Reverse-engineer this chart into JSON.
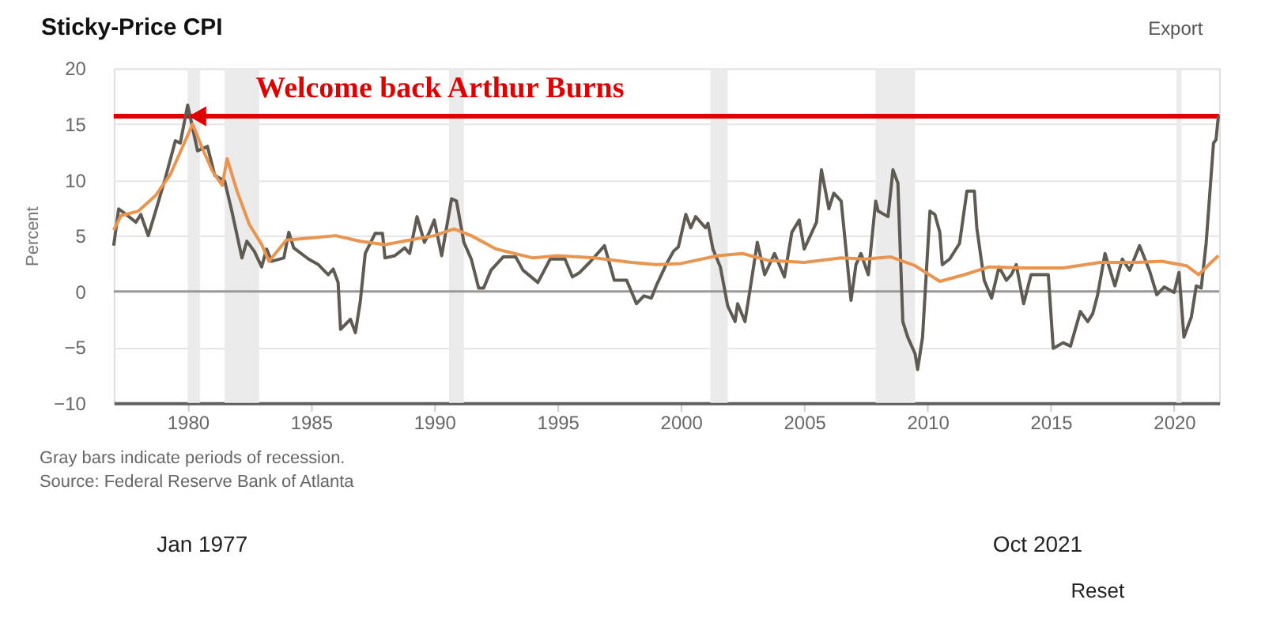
{
  "chart_data": {
    "type": "line",
    "title": "Sticky-Price CPI",
    "ylabel": "Percent",
    "xlim": [
      1977,
      2021.83
    ],
    "xticks": [
      1980,
      1985,
      1990,
      1995,
      2000,
      2005,
      2010,
      2015,
      2020
    ],
    "ylim": [
      -10,
      20
    ],
    "yticks": [
      -10,
      -5,
      0,
      5,
      10,
      15,
      20
    ],
    "grid": "y",
    "line_style": "solid",
    "marker": "none",
    "series": [
      {
        "color": "#5f5a52",
        "x": [
          1977.0,
          1977.2,
          1977.5,
          1977.9,
          1978.1,
          1978.4,
          1978.7,
          1979.1,
          1979.5,
          1979.7,
          1980.0,
          1980.4,
          1980.8,
          1981.1,
          1981.5,
          1981.8,
          1982.2,
          1982.4,
          1982.7,
          1983.0,
          1983.2,
          1983.4,
          1983.9,
          1984.1,
          1984.3,
          1984.9,
          1985.3,
          1985.7,
          1985.9,
          1986.1,
          1986.2,
          1986.6,
          1986.8,
          1987.0,
          1987.2,
          1987.6,
          1987.9,
          1988.0,
          1988.4,
          1988.8,
          1989.0,
          1989.3,
          1989.6,
          1989.8,
          1990.0,
          1990.3,
          1990.7,
          1990.9,
          1991.2,
          1991.5,
          1991.8,
          1992.0,
          1992.3,
          1992.8,
          1993.3,
          1993.6,
          1994.2,
          1994.7,
          1995.3,
          1995.6,
          1995.9,
          1996.3,
          1996.9,
          1997.3,
          1997.8,
          1998.2,
          1998.5,
          1998.8,
          1999.0,
          1999.4,
          1999.7,
          1999.9,
          2000.2,
          2000.4,
          2000.6,
          2001.0,
          2001.1,
          2001.3,
          2001.6,
          2001.9,
          2002.2,
          2002.3,
          2002.6,
          2002.8,
          2003.1,
          2003.4,
          2003.8,
          2004.2,
          2004.5,
          2004.8,
          2005.0,
          2005.5,
          2005.7,
          2006.0,
          2006.2,
          2006.5,
          2006.9,
          2007.1,
          2007.3,
          2007.6,
          2007.9,
          2008.0,
          2008.4,
          2008.6,
          2008.8,
          2009.0,
          2009.2,
          2009.5,
          2009.6,
          2009.8,
          2010.1,
          2010.3,
          2010.5,
          2010.6,
          2010.9,
          2011.3,
          2011.6,
          2011.9,
          2012.0,
          2012.3,
          2012.6,
          2012.9,
          2013.2,
          2013.4,
          2013.6,
          2013.9,
          2014.2,
          2014.9,
          2015.1,
          2015.5,
          2015.8,
          2016.2,
          2016.5,
          2016.7,
          2016.9,
          2017.2,
          2017.6,
          2017.9,
          2018.2,
          2018.6,
          2019.0,
          2019.3,
          2019.6,
          2020.0,
          2020.2,
          2020.4,
          2020.7,
          2020.9,
          2021.1,
          2021.3,
          2021.6,
          2021.7,
          2021.8
        ],
        "values": [
          4.1,
          7.4,
          6.9,
          6.2,
          6.9,
          5.0,
          7.2,
          10.2,
          13.5,
          13.3,
          16.7,
          12.6,
          13.0,
          10.4,
          9.9,
          7.1,
          3.0,
          4.5,
          3.6,
          2.2,
          3.8,
          2.7,
          3.0,
          5.3,
          3.9,
          2.9,
          2.4,
          1.5,
          2.0,
          0.8,
          -3.4,
          -2.5,
          -3.7,
          -0.9,
          3.4,
          5.2,
          5.2,
          3.0,
          3.2,
          3.9,
          3.4,
          6.7,
          4.4,
          5.3,
          6.4,
          3.2,
          8.3,
          8.1,
          4.4,
          2.9,
          0.3,
          0.3,
          1.9,
          3.1,
          3.1,
          1.9,
          0.8,
          2.9,
          2.9,
          1.3,
          1.7,
          2.6,
          4.1,
          1.0,
          1.0,
          -1.1,
          -0.4,
          -0.6,
          0.5,
          2.4,
          3.6,
          4.0,
          6.9,
          5.7,
          6.7,
          5.7,
          6.1,
          3.8,
          2.2,
          -1.3,
          -2.7,
          -1.1,
          -2.7,
          0.1,
          4.4,
          1.5,
          3.4,
          1.3,
          5.3,
          6.4,
          3.8,
          6.2,
          10.9,
          7.4,
          8.8,
          8.1,
          -0.8,
          2.4,
          3.4,
          1.5,
          8.1,
          7.2,
          6.7,
          10.9,
          9.7,
          -2.7,
          -4.1,
          -5.6,
          -7.0,
          -4.1,
          7.2,
          6.9,
          5.3,
          2.4,
          2.9,
          4.3,
          9.0,
          9.0,
          5.7,
          1.0,
          -0.6,
          2.2,
          1.0,
          1.5,
          2.4,
          -1.1,
          1.5,
          1.5,
          -5.1,
          -4.6,
          -4.9,
          -1.8,
          -2.7,
          -2.0,
          -0.3,
          3.4,
          0.5,
          2.9,
          1.9,
          4.1,
          1.9,
          -0.3,
          0.4,
          -0.1,
          1.7,
          -4.1,
          -2.3,
          0.5,
          0.3,
          4.3,
          13.3,
          13.6,
          15.8
        ]
      },
      {
        "color": "#e9954f",
        "x": [
          1977.0,
          1977.3,
          1978.0,
          1978.7,
          1979.3,
          1979.7,
          1980.2,
          1980.6,
          1981.0,
          1981.4,
          1981.6,
          1982.0,
          1982.5,
          1983.0,
          1983.3,
          1984.0,
          1985.0,
          1986.0,
          1987.0,
          1988.0,
          1989.0,
          1990.0,
          1990.8,
          1991.5,
          1992.5,
          1994.0,
          1995.0,
          1996.5,
          1998.0,
          1999.0,
          2000.0,
          2001.5,
          2002.5,
          2003.5,
          2005.0,
          2006.5,
          2007.5,
          2008.5,
          2009.5,
          2010.5,
          2011.5,
          2012.5,
          2014.0,
          2015.5,
          2017.0,
          2018.5,
          2019.5,
          2020.5,
          2021.0,
          2021.5,
          2021.8
        ],
        "values": [
          5.5,
          6.8,
          7.2,
          8.6,
          10.5,
          12.5,
          15.0,
          12.8,
          10.8,
          9.5,
          11.9,
          9.0,
          6.0,
          4.2,
          2.7,
          4.6,
          4.8,
          5.0,
          4.5,
          4.2,
          4.6,
          5.0,
          5.6,
          5.0,
          3.8,
          3.0,
          3.2,
          3.0,
          2.6,
          2.4,
          2.5,
          3.2,
          3.4,
          2.8,
          2.6,
          3.0,
          2.9,
          3.1,
          2.3,
          0.9,
          1.5,
          2.2,
          2.1,
          2.1,
          2.6,
          2.6,
          2.7,
          2.3,
          1.5,
          2.6,
          3.2
        ]
      }
    ],
    "bands": [
      {
        "axis": "x",
        "from": 1980.0,
        "to": 1980.5,
        "color": "#ebebeb"
      },
      {
        "axis": "x",
        "from": 1981.5,
        "to": 1982.9,
        "color": "#ebebeb"
      },
      {
        "axis": "x",
        "from": 1990.6,
        "to": 1991.2,
        "color": "#ebebeb"
      },
      {
        "axis": "x",
        "from": 2001.2,
        "to": 2001.9,
        "color": "#ebebeb"
      },
      {
        "axis": "x",
        "from": 2007.9,
        "to": 2009.5,
        "color": "#ebebeb"
      },
      {
        "axis": "x",
        "from": 2020.1,
        "to": 2020.3,
        "color": "#ebebeb"
      }
    ],
    "ref_lines": [
      {
        "axis": "y",
        "value": 0,
        "color": "#999999"
      },
      {
        "axis": "y",
        "value": 15.7,
        "color": "#e00000"
      }
    ],
    "annotations": [
      {
        "text": "Welcome back Arthur Burns",
        "x": 1980.4,
        "y": 15.7
      },
      "Gray bars indicate periods of recession.",
      "Source: Federal Reserve Bank of Atlanta",
      "Export",
      "Jan 1977",
      "Oct 2021",
      "Reset"
    ]
  }
}
